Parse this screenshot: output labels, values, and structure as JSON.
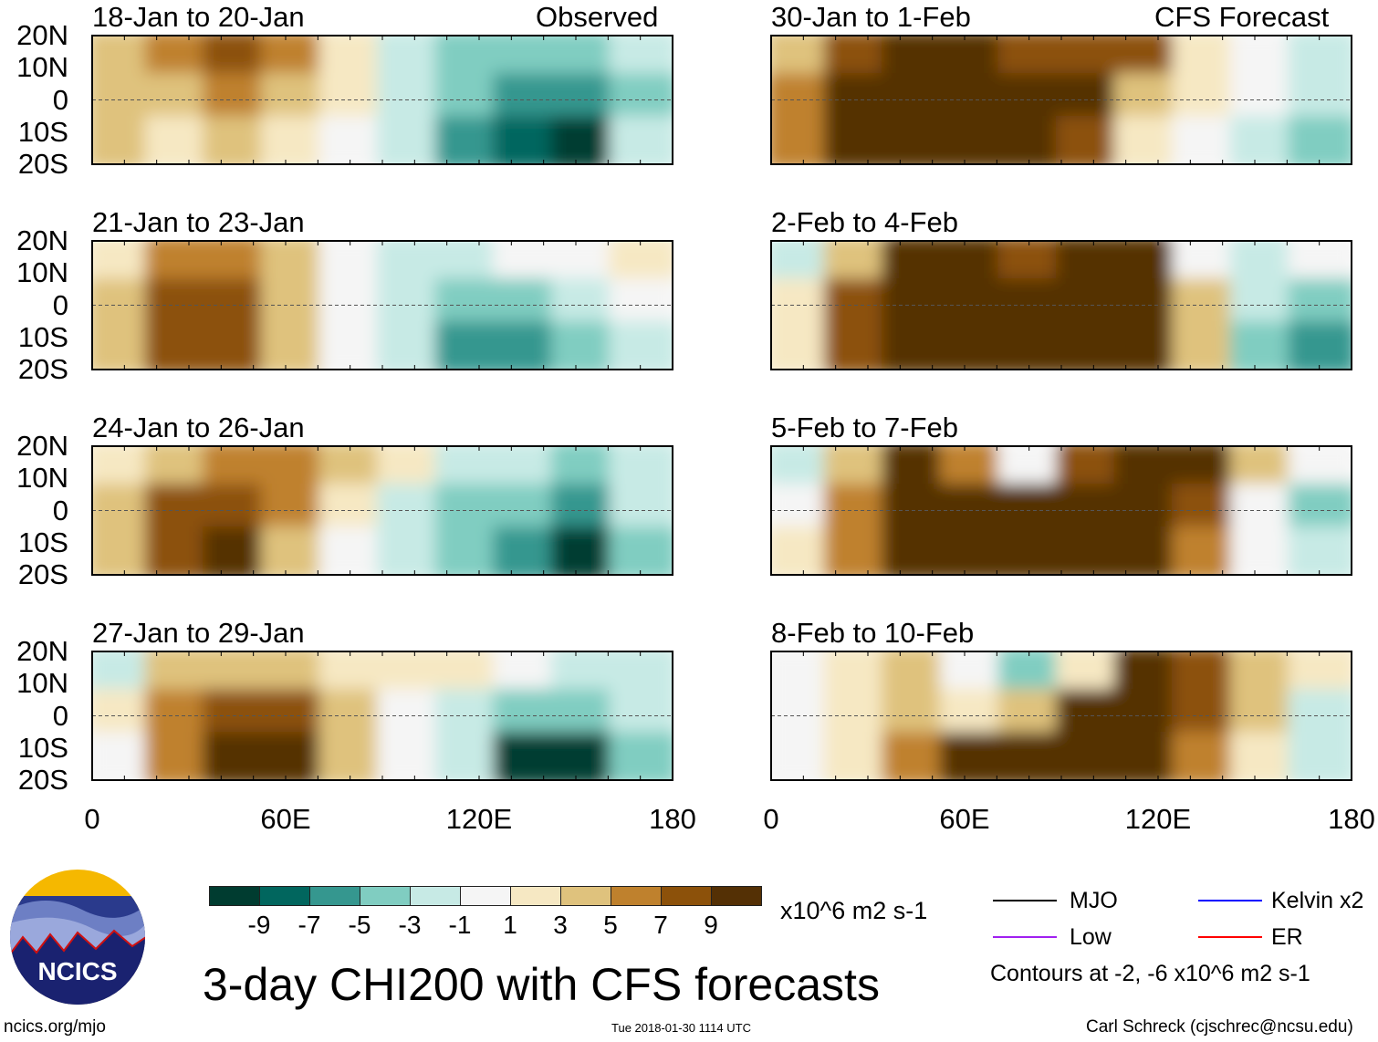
{
  "headers": {
    "left": "Observed",
    "right": "CFS Forecast"
  },
  "lat_labels": [
    "20N",
    "10N",
    "0",
    "10S",
    "20S"
  ],
  "lon_labels": [
    "0",
    "60E",
    "120E",
    "180"
  ],
  "panels": [
    {
      "title": "18-Jan to 20-Jan",
      "column": "left",
      "field": [
        [
          3,
          5,
          7,
          5,
          1,
          -3,
          -5,
          -5,
          -5,
          -3
        ],
        [
          3,
          3,
          5,
          3,
          1,
          -3,
          -5,
          -7,
          -7,
          -5
        ],
        [
          3,
          1,
          3,
          1,
          -1,
          -3,
          -7,
          -9,
          -11,
          -3
        ]
      ]
    },
    {
      "title": "21-Jan to 23-Jan",
      "column": "left",
      "field": [
        [
          1,
          5,
          5,
          3,
          -1,
          -3,
          -3,
          -1,
          -1,
          1
        ],
        [
          3,
          7,
          7,
          3,
          -1,
          -3,
          -5,
          -5,
          -3,
          -1
        ],
        [
          3,
          7,
          7,
          3,
          -1,
          -3,
          -7,
          -7,
          -5,
          -3
        ]
      ]
    },
    {
      "title": "24-Jan to 26-Jan",
      "column": "left",
      "field": [
        [
          1,
          3,
          5,
          5,
          3,
          1,
          -3,
          -3,
          -5,
          -3
        ],
        [
          3,
          7,
          7,
          5,
          1,
          -3,
          -5,
          -5,
          -7,
          -3
        ],
        [
          3,
          7,
          9,
          3,
          -1,
          -3,
          -5,
          -7,
          -11,
          -5
        ]
      ]
    },
    {
      "title": "27-Jan to 29-Jan",
      "column": "left",
      "field": [
        [
          -3,
          3,
          3,
          3,
          1,
          1,
          1,
          -1,
          -3,
          -3
        ],
        [
          1,
          5,
          7,
          7,
          3,
          -1,
          -3,
          -5,
          -5,
          -3
        ],
        [
          -1,
          5,
          9,
          9,
          3,
          -1,
          -3,
          -11,
          -11,
          -5
        ]
      ]
    },
    {
      "title": "30-Jan to 1-Feb",
      "column": "right",
      "field": [
        [
          3,
          7,
          9,
          9,
          7,
          7,
          7,
          1,
          -1,
          -3
        ],
        [
          5,
          9,
          9,
          9,
          9,
          9,
          3,
          1,
          -1,
          -3
        ],
        [
          5,
          9,
          9,
          9,
          9,
          7,
          1,
          -1,
          -3,
          -5
        ]
      ]
    },
    {
      "title": "2-Feb to 4-Feb",
      "column": "right",
      "field": [
        [
          -3,
          3,
          9,
          9,
          7,
          9,
          9,
          -1,
          -3,
          -1
        ],
        [
          1,
          7,
          9,
          9,
          9,
          9,
          9,
          3,
          -3,
          -5
        ],
        [
          1,
          7,
          9,
          9,
          9,
          9,
          9,
          3,
          -5,
          -7
        ]
      ]
    },
    {
      "title": "5-Feb to 7-Feb",
      "column": "right",
      "field": [
        [
          -3,
          3,
          9,
          5,
          -1,
          7,
          9,
          9,
          3,
          -1
        ],
        [
          -1,
          5,
          9,
          9,
          9,
          9,
          9,
          7,
          -1,
          -5
        ],
        [
          1,
          5,
          9,
          9,
          9,
          9,
          9,
          5,
          -1,
          -3
        ]
      ]
    },
    {
      "title": "8-Feb to 10-Feb",
      "column": "right",
      "field": [
        [
          -1,
          1,
          3,
          -1,
          -5,
          1,
          9,
          7,
          3,
          1
        ],
        [
          -1,
          1,
          3,
          1,
          3,
          9,
          9,
          7,
          3,
          -3
        ],
        [
          -1,
          1,
          5,
          9,
          9,
          9,
          9,
          5,
          1,
          -3
        ]
      ]
    }
  ],
  "colorbar": {
    "colors": [
      "#003c30",
      "#01665e",
      "#35978f",
      "#80cdc1",
      "#c7eae5",
      "#f5f5f5",
      "#f6e8c3",
      "#dfc27d",
      "#bf812d",
      "#8c510a",
      "#543005"
    ],
    "labels": [
      "-9",
      "-7",
      "-5",
      "-3",
      "-1",
      "1",
      "3",
      "5",
      "7",
      "9"
    ],
    "units": "x10^6 m2 s-1"
  },
  "title": "3-day CHI200 with CFS forecasts",
  "legend": {
    "items": [
      {
        "label": "MJO",
        "color": "#000000"
      },
      {
        "label": "Kelvin x2",
        "color": "#0000ff"
      },
      {
        "label": "Low",
        "color": "#a020f0"
      },
      {
        "label": "ER",
        "color": "#ff0000"
      }
    ],
    "note": "Contours at -2, -6 x10^6 m2 s-1"
  },
  "logo": {
    "text": "NCICS"
  },
  "footer": {
    "url": "ncics.org/mjo",
    "timestamp": "Tue 2018-01-30 1114 UTC",
    "author": "Carl Schreck (cjschrec@ncsu.edu)"
  }
}
